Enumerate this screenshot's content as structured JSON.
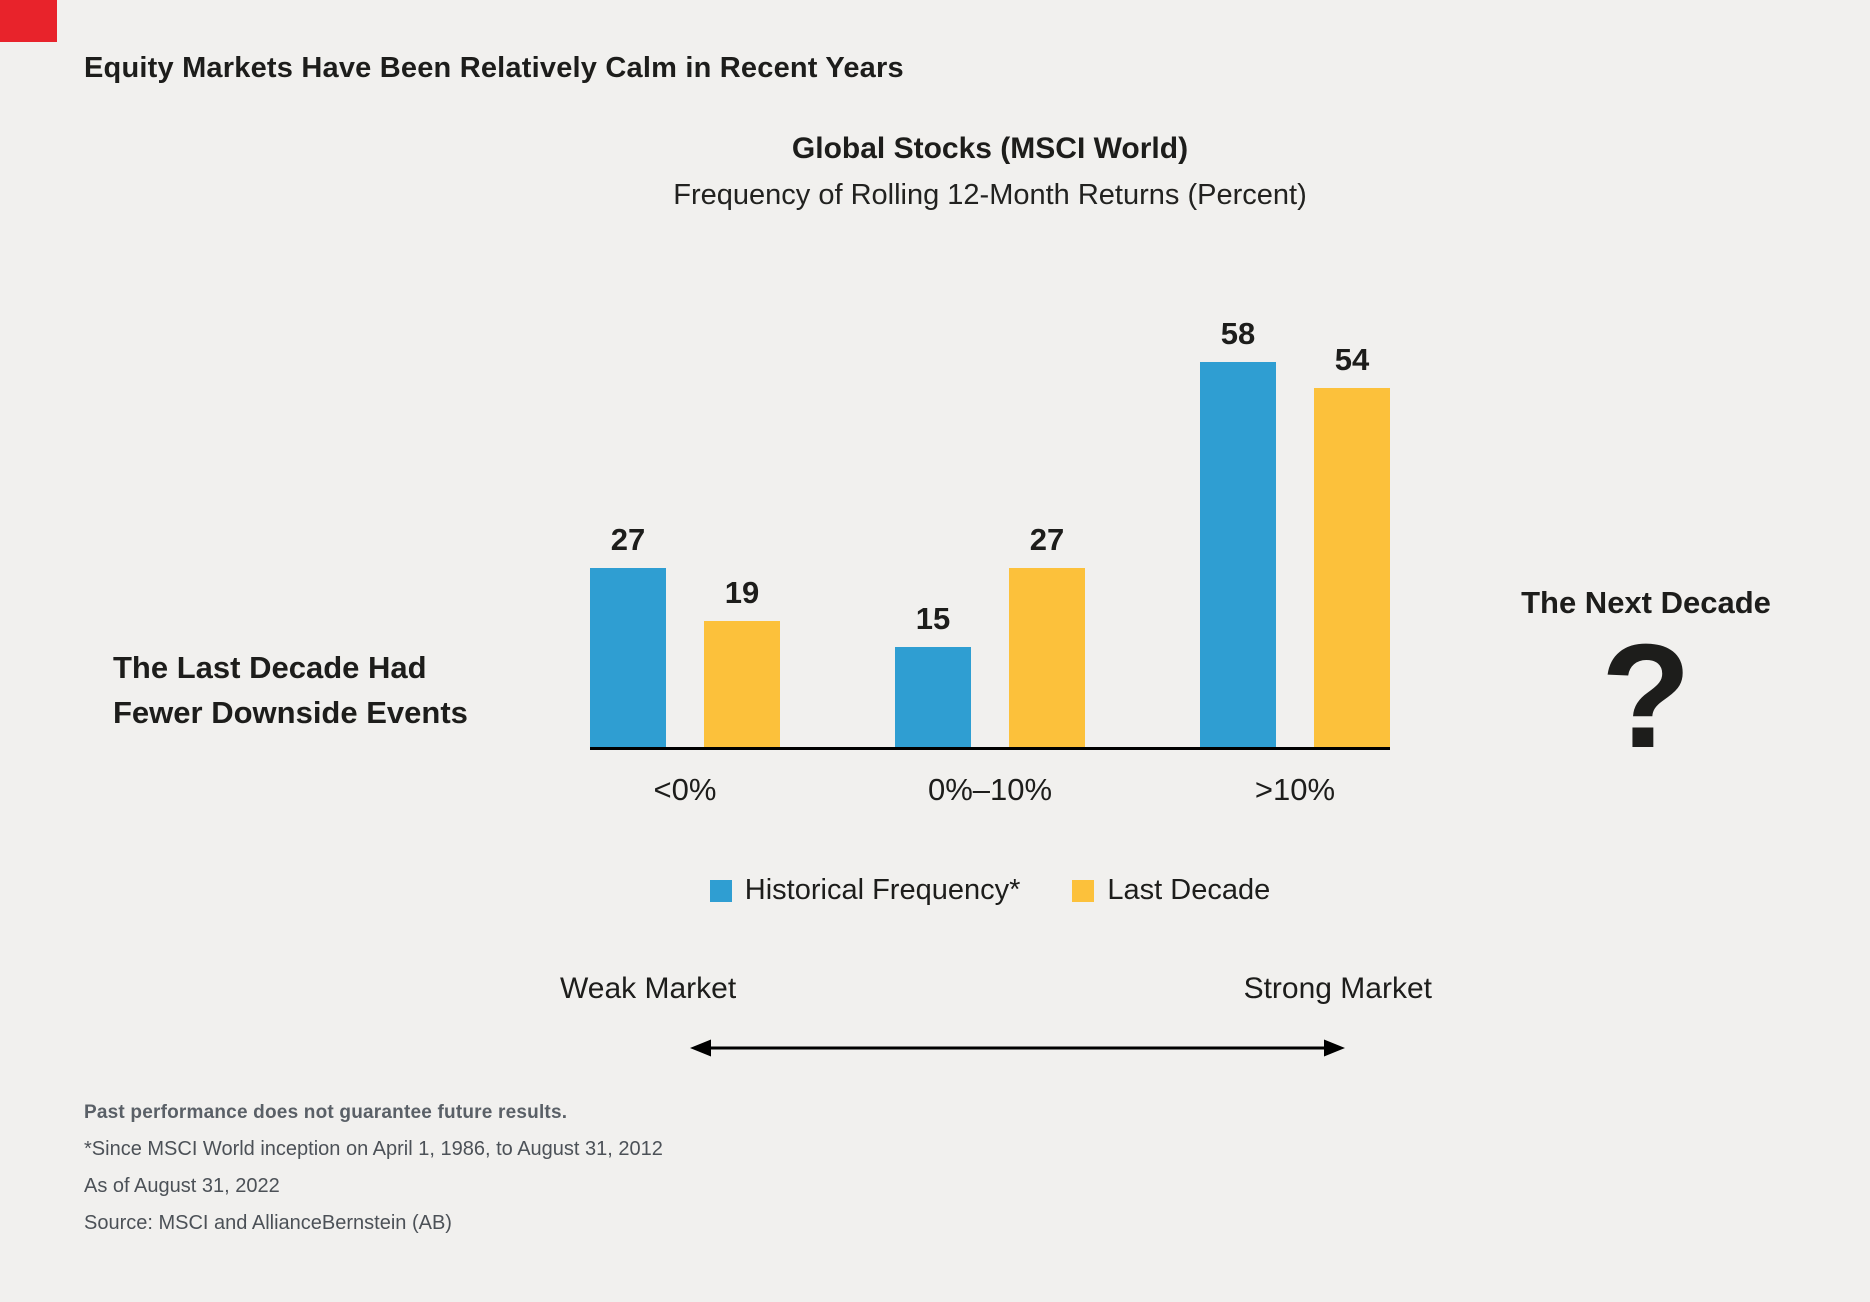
{
  "page": {
    "background": "#f1f0ee",
    "accent_red": "#e8232b",
    "text_dark": "#1d1d1b",
    "footnote_gray": "#4c5157"
  },
  "header": {
    "title": "Equity Markets Have Been Relatively Calm in Recent Years"
  },
  "left_callout": {
    "line1": "The Last Decade Had",
    "line2": "Fewer Downside Events"
  },
  "right_callout": {
    "title": "The Next Decade",
    "symbol": "?"
  },
  "chart_data": {
    "type": "bar",
    "title": "Global Stocks (MSCI World)",
    "subtitle": "Frequency of Rolling 12-Month Returns (Percent)",
    "categories": [
      "<0%",
      "0%–10%",
      ">10%"
    ],
    "series": [
      {
        "name": "Historical Frequency*",
        "color": "#2f9ed2",
        "values": [
          27,
          15,
          58
        ]
      },
      {
        "name": "Last Decade",
        "color": "#fcc13b",
        "values": [
          19,
          27,
          54
        ]
      }
    ],
    "ylim": [
      0,
      65
    ],
    "grid": false,
    "legend_position": "bottom",
    "value_labels": true
  },
  "market_axis": {
    "left_label": "Weak Market",
    "right_label": "Strong Market"
  },
  "footnotes": [
    "Past performance does not guarantee future results.",
    "*Since MSCI World inception on April 1, 1986, to August 31, 2012",
    "As of August 31, 2022",
    "Source: MSCI and AllianceBernstein (AB)"
  ]
}
